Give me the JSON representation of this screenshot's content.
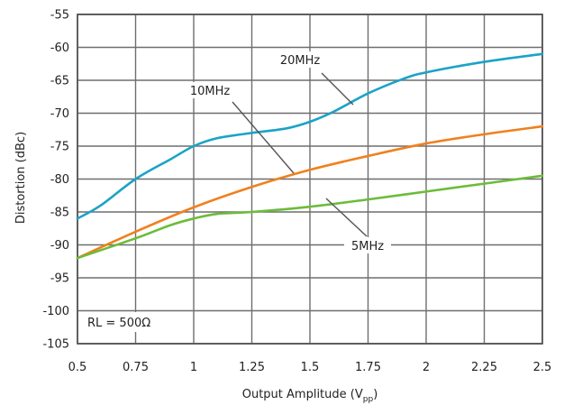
{
  "chart_data": {
    "type": "line",
    "xlabel": "Output Amplitude (V",
    "xlabel_sub": "pp",
    "xlabel_end": ")",
    "ylabel": "Distortion (dBc)",
    "xlim": [
      0.5,
      2.5
    ],
    "ylim": [
      -105,
      -55
    ],
    "x_ticks": [
      "0.5",
      "0.75",
      "1",
      "1.25",
      "1.5",
      "1.75",
      "2",
      "2.25",
      "2.5"
    ],
    "y_ticks": [
      "-55",
      "-60",
      "-65",
      "-70",
      "-75",
      "-80",
      "-85",
      "-90",
      "-95",
      "-100",
      "-105"
    ],
    "grid": true,
    "series": [
      {
        "name": "20MHz",
        "color": "#1ba3c6",
        "x": [
          0.5,
          0.6,
          0.75,
          0.9,
          1.0,
          1.1,
          1.25,
          1.4,
          1.5,
          1.6,
          1.75,
          1.9,
          2.0,
          2.25,
          2.5
        ],
        "y": [
          -86,
          -84,
          -80,
          -77,
          -75,
          -73.8,
          -73,
          -72.3,
          -71.3,
          -69.8,
          -67,
          -64.8,
          -63.8,
          -62.2,
          -61
        ]
      },
      {
        "name": "10MHz",
        "color": "#f0801e",
        "x": [
          0.5,
          0.75,
          1.0,
          1.25,
          1.5,
          1.75,
          2.0,
          2.25,
          2.5
        ],
        "y": [
          -92,
          -88,
          -84.3,
          -81.2,
          -78.6,
          -76.5,
          -74.6,
          -73.2,
          -72
        ]
      },
      {
        "name": "5MHz",
        "color": "#6cbc3a",
        "x": [
          0.5,
          0.75,
          0.9,
          1.0,
          1.1,
          1.25,
          1.5,
          1.75,
          2.0,
          2.25,
          2.5
        ],
        "y": [
          -92,
          -89,
          -87,
          -86,
          -85.3,
          -85,
          -84.2,
          -83.1,
          -81.9,
          -80.7,
          -79.5
        ]
      }
    ],
    "annotations": {
      "label_20": "20MHz",
      "label_10": "10MHz",
      "label_5": "5MHz",
      "rl_label": "RL = 500Ω"
    }
  }
}
